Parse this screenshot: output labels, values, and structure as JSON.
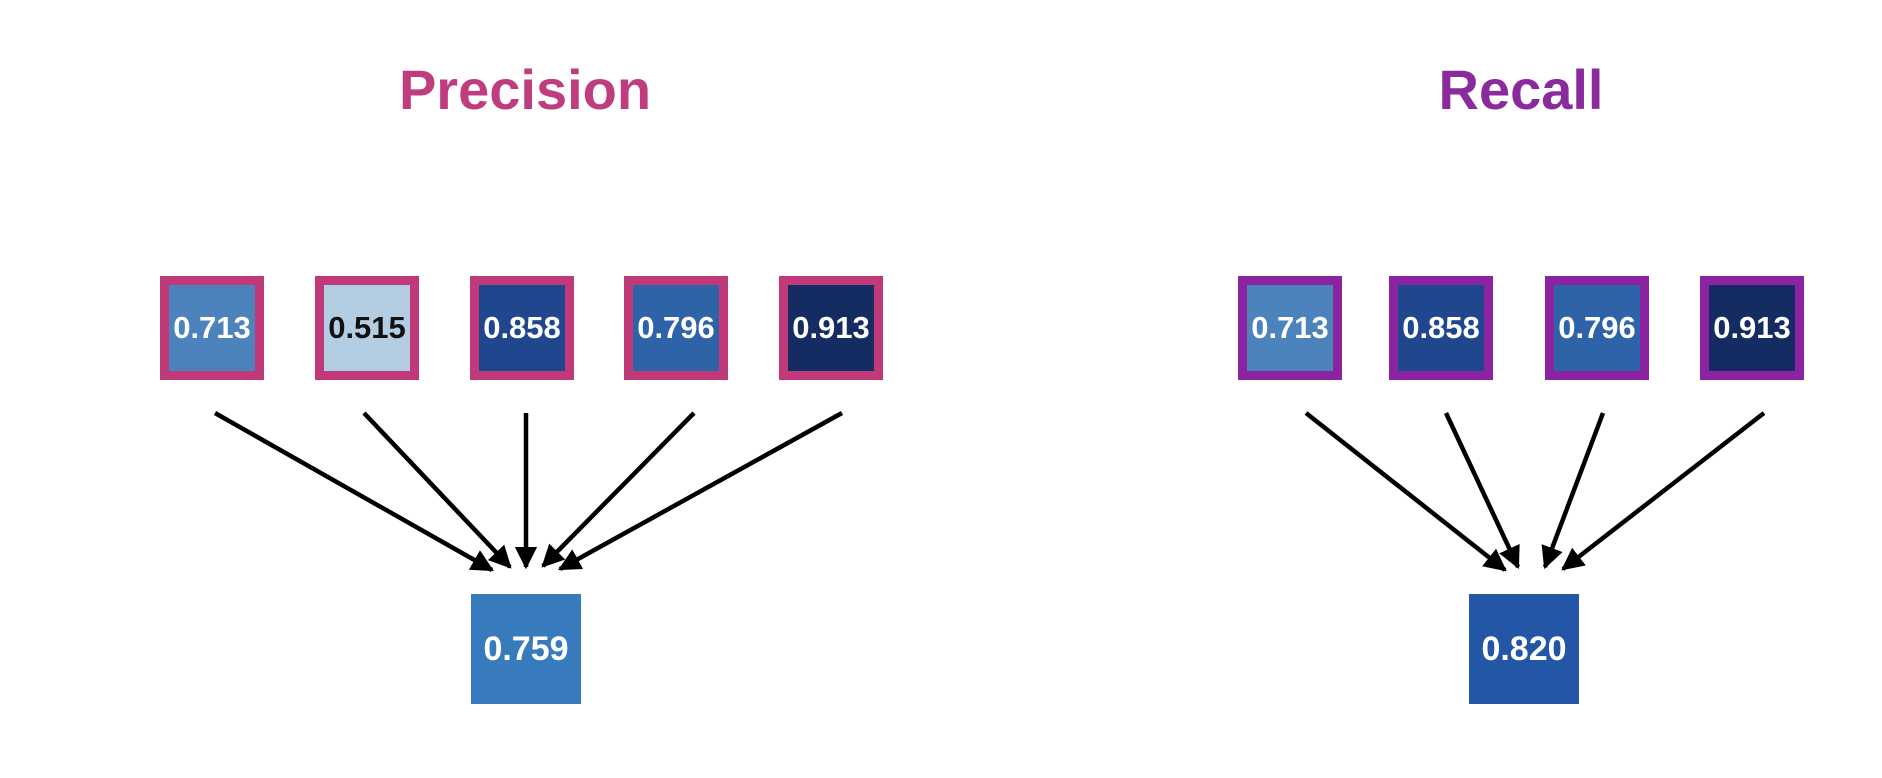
{
  "panels": [
    {
      "id": "precision",
      "title": "Precision",
      "title_color": "#BF3C7E",
      "border_color": "#C03A7A",
      "inputs": [
        {
          "value": "0.713",
          "fill": "#4D83BC",
          "text_color": "#FFFFFF"
        },
        {
          "value": "0.515",
          "fill": "#B3CDE3",
          "text_color": "#111111"
        },
        {
          "value": "0.858",
          "fill": "#20478E",
          "text_color": "#FFFFFF"
        },
        {
          "value": "0.796",
          "fill": "#2F63A8",
          "text_color": "#FFFFFF"
        },
        {
          "value": "0.913",
          "fill": "#152C62",
          "text_color": "#FFFFFF"
        }
      ],
      "output": {
        "value": "0.759",
        "fill": "#377BBD",
        "text_color": "#FFFFFF"
      }
    },
    {
      "id": "recall",
      "title": "Recall",
      "title_color": "#8B2A9D",
      "border_color": "#8C24A2",
      "inputs": [
        {
          "value": "0.713",
          "fill": "#4D83BC",
          "text_color": "#FFFFFF"
        },
        {
          "value": "0.858",
          "fill": "#20478E",
          "text_color": "#FFFFFF"
        },
        {
          "value": "0.796",
          "fill": "#2F63A8",
          "text_color": "#FFFFFF"
        },
        {
          "value": "0.913",
          "fill": "#152C62",
          "text_color": "#FFFFFF"
        }
      ],
      "output": {
        "value": "0.820",
        "fill": "#2356A5",
        "text_color": "#FFFFFF"
      }
    }
  ],
  "arrow_color": "#000000"
}
